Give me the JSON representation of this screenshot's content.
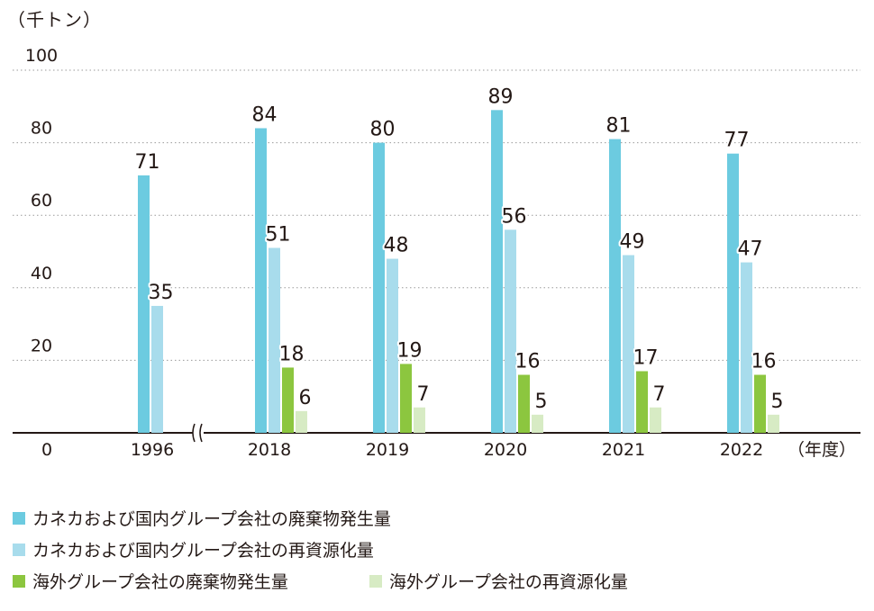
{
  "chart_data": {
    "type": "bar",
    "unit_label": "（千トン）",
    "x_unit_label": "（年度）",
    "categories": [
      "1996",
      "2018",
      "2019",
      "2020",
      "2021",
      "2022"
    ],
    "ylim": [
      0,
      100
    ],
    "yticks": [
      "0",
      "20",
      "40",
      "60",
      "80",
      "100"
    ],
    "grid": true,
    "axis_break_after_category": "1996",
    "legend_position": "bottom",
    "series": [
      {
        "name": "カネカおよび国内グループ会社の廃棄物発生量",
        "color": "#6ccbe0",
        "values": [
          71,
          84,
          80,
          89,
          81,
          77
        ]
      },
      {
        "name": "カネカおよび国内グループ会社の再資源化量",
        "color": "#a8dcec",
        "values": [
          35,
          51,
          48,
          56,
          49,
          47
        ]
      },
      {
        "name": "海外グループ会社の廃棄物発生量",
        "color": "#8cc63f",
        "values": [
          null,
          18,
          19,
          16,
          17,
          16
        ]
      },
      {
        "name": "海外グループ会社の再資源化量",
        "color": "#d7ebc4",
        "values": [
          null,
          6,
          7,
          5,
          7,
          5
        ]
      }
    ]
  }
}
